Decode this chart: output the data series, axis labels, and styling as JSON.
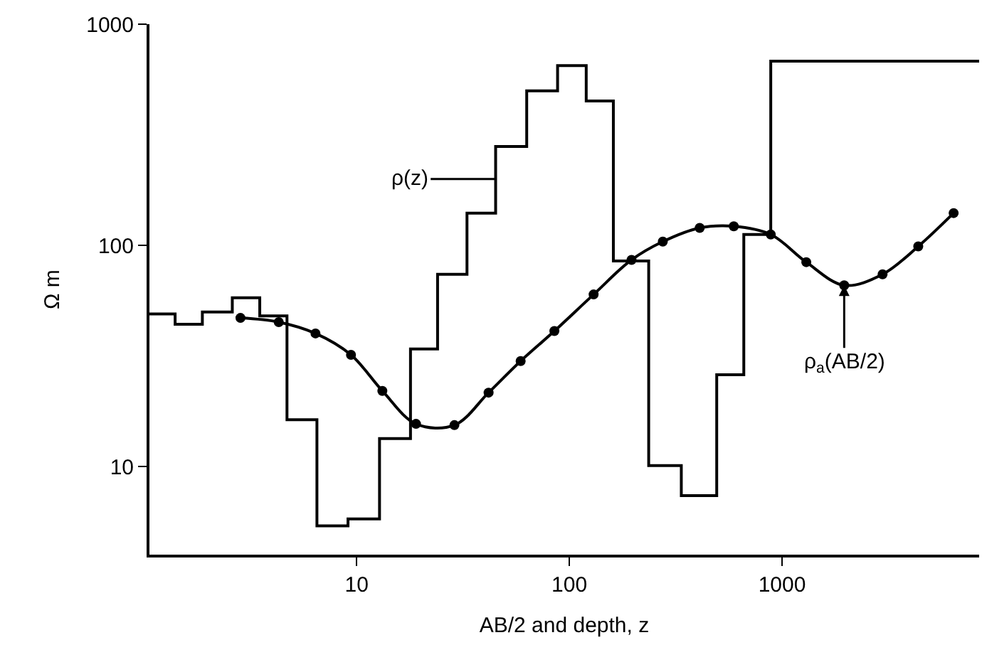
{
  "chart_data": {
    "type": "line",
    "xlabel": "AB/2 and depth, z",
    "ylabel": "Ω m",
    "log": "xy",
    "xlim": [
      1.06,
      8450
    ],
    "ylim": [
      4,
      1000
    ],
    "xticks": [
      10,
      100,
      1000
    ],
    "yticks": [
      10,
      100,
      1000
    ],
    "line_style": "solid",
    "series": [
      {
        "type": "step",
        "marker": "none",
        "color": "#000000",
        "x": [
          1.06,
          1.4,
          1.88,
          2.6,
          3.5,
          4.7,
          6.5,
          9.1,
          12.8,
          17.9,
          24,
          33,
          45,
          63,
          88,
          120,
          161,
          236,
          336,
          493,
          661,
          885,
          8450
        ],
        "values": [
          49,
          44,
          50,
          58,
          48,
          16.3,
          5.4,
          5.8,
          13.4,
          34,
          74,
          140,
          280,
          500,
          650,
          450,
          85,
          10.1,
          7.4,
          26,
          112,
          680,
          680
        ]
      },
      {
        "marker": "circle",
        "color": "#000000",
        "x": [
          2.84,
          4.3,
          6.4,
          9.4,
          13.2,
          19,
          28.8,
          41.7,
          59,
          85,
          130,
          196,
          275,
          410,
          593,
          885,
          1300,
          1960,
          2970,
          4370,
          6410
        ],
        "values": [
          47,
          45,
          40,
          32,
          22,
          15.6,
          15.4,
          21.6,
          30,
          41,
          60,
          86,
          104,
          120,
          122,
          112,
          84,
          66,
          74,
          99,
          140
        ]
      }
    ],
    "annotations": [
      "ρ(z)",
      {
        "text": "ρ$_{a}$(AB/2)",
        "x": 1960,
        "y": 66
      }
    ]
  }
}
